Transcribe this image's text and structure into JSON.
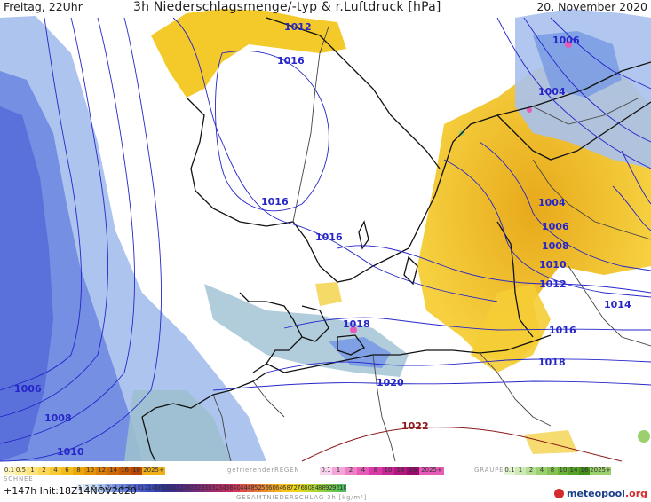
{
  "header": {
    "left": "Freitag, 22Uhr",
    "title": "3h Niederschlagsmenge/-typ & r.Luftdruck [hPa]",
    "right": "20. November 2020"
  },
  "isobars": [
    {
      "label": "1012"
    },
    {
      "label": "1016"
    },
    {
      "label": "1016"
    },
    {
      "label": "1016"
    },
    {
      "label": "1006"
    },
    {
      "label": "1004"
    },
    {
      "label": "1004"
    },
    {
      "label": "1006"
    },
    {
      "label": "1008"
    },
    {
      "label": "1010"
    },
    {
      "label": "1012"
    },
    {
      "label": "1014"
    },
    {
      "label": "1016"
    },
    {
      "label": "1018"
    },
    {
      "label": "1018"
    },
    {
      "label": "1020"
    },
    {
      "label": "1022"
    },
    {
      "label": "1006"
    },
    {
      "label": "1008"
    },
    {
      "label": "1010"
    }
  ],
  "colors": {
    "snow": "#6b86e0",
    "snow_light": "#a9c1ee",
    "rain": "#f2c71f",
    "rain_dark": "#e0a30e",
    "freezing": "#e65bb8",
    "graupel": "#9bd06f",
    "isobar": "#2626c9",
    "isobar_high": "#8b1a1a",
    "land": "#ffffff",
    "sea": "#ffffff",
    "coast": "#111111",
    "border": "#444444"
  },
  "legend": {
    "snow_label": "SCHNEE",
    "rain_label": "",
    "freezing_label": "gefrierenderREGEN",
    "graupel_label": "GRAUPEL",
    "total_label": "GESAMTNIEDERSCHLAG 3h [kg/m²]",
    "forecast_info": "+147h Init:18Z14NOV2020",
    "logo_main": "meteopool",
    "logo_tld": ".org",
    "rain_scale": [
      "0.1",
      "0.5",
      "1",
      "2",
      "4",
      "6",
      "8",
      "10",
      "12",
      "14",
      "16",
      "18",
      "2025+"
    ],
    "freezing_scale": [
      "0.1",
      "1",
      "2",
      "4",
      "8",
      "10",
      "14",
      "16",
      "2025+"
    ],
    "graupel_scale": [
      "0.1",
      "1",
      "2",
      "4",
      "8",
      "10",
      "14",
      "16",
      "2025+"
    ],
    "total_scale": [
      "1",
      "2",
      "5",
      "1",
      "2",
      "4",
      "6",
      "8",
      "10",
      "12",
      "14",
      "16",
      "18",
      "20",
      "22",
      "24",
      "26",
      "28",
      "30",
      "32",
      "34",
      "36",
      "40",
      "44",
      "48",
      "52",
      "56",
      "60",
      "64",
      "68",
      "72",
      "76",
      "80",
      "84",
      "88",
      "92",
      "96",
      "100"
    ]
  }
}
